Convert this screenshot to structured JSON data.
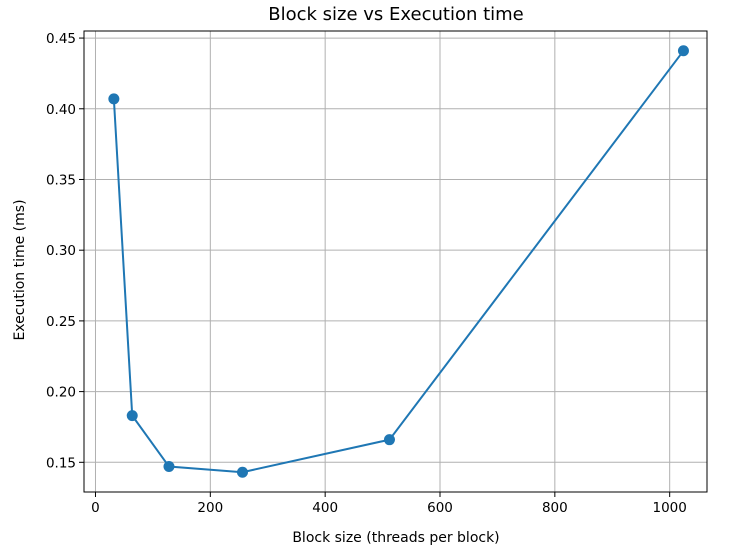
{
  "chart_data": {
    "type": "line",
    "title": "Block size vs Execution time",
    "xlabel": "Block size (threads per block)",
    "ylabel": "Execution time (ms)",
    "xlim": [
      -20,
      1065
    ],
    "ylim": [
      0.129,
      0.455
    ],
    "xticks": [
      0,
      200,
      400,
      600,
      800,
      1000
    ],
    "xtick_labels": [
      "0",
      "200",
      "400",
      "600",
      "800",
      "1000"
    ],
    "yticks": [
      0.15,
      0.2,
      0.25,
      0.3,
      0.35,
      0.4,
      0.45
    ],
    "ytick_labels": [
      "0.15",
      "0.20",
      "0.25",
      "0.30",
      "0.35",
      "0.40",
      "0.45"
    ],
    "grid": true,
    "color": "#1f77b4",
    "series": [
      {
        "x": [
          32,
          64,
          128,
          256,
          512,
          1024
        ],
        "y": [
          0.407,
          0.183,
          0.147,
          0.143,
          0.166,
          0.441
        ],
        "marker": "circle"
      }
    ]
  }
}
